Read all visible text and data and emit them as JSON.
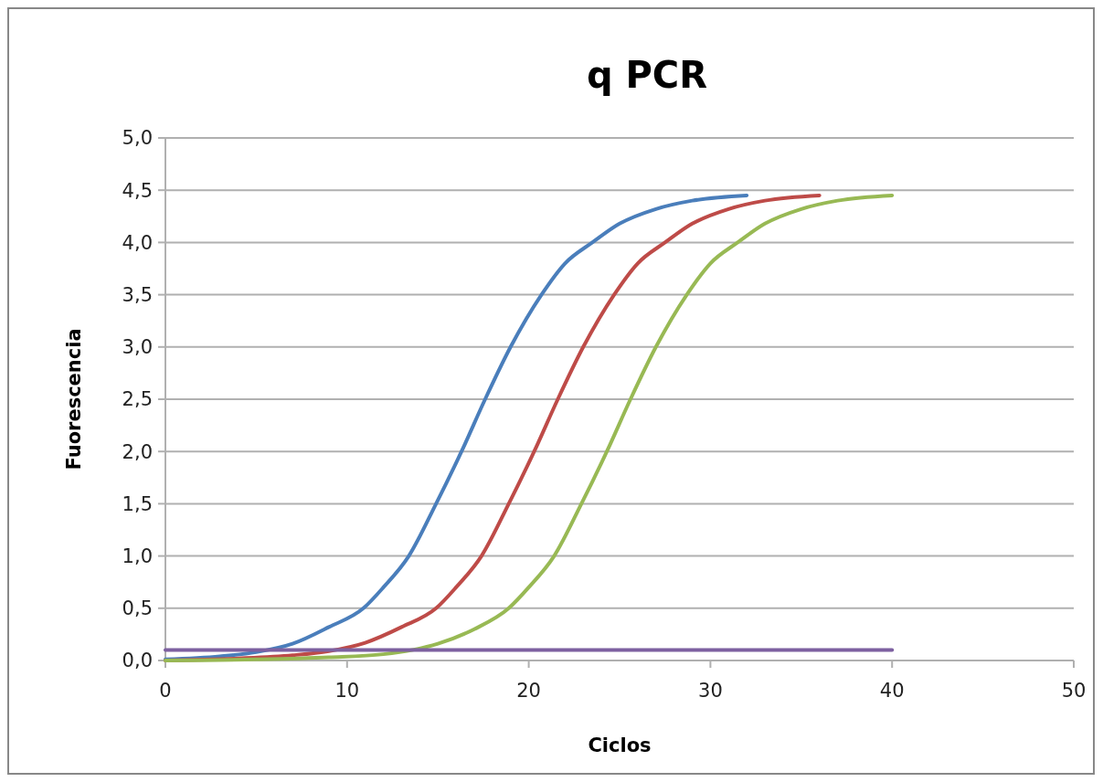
{
  "chart_data": {
    "type": "line",
    "title": "q PCR",
    "xlabel": "Ciclos",
    "ylabel": "Fuorescencia",
    "xlim": [
      0,
      50
    ],
    "xticks": [
      0,
      10,
      20,
      30,
      40,
      50
    ],
    "ylim": [
      0,
      5
    ],
    "yticks": [
      {
        "value": 0,
        "label": "0,0"
      },
      {
        "value": 0.5,
        "label": "0,5"
      },
      {
        "value": 1,
        "label": "1,0"
      },
      {
        "value": 1.5,
        "label": "1,5"
      },
      {
        "value": 2,
        "label": "2,0"
      },
      {
        "value": 2.5,
        "label": "2,5"
      },
      {
        "value": 3,
        "label": "3,0"
      },
      {
        "value": 3.5,
        "label": "3,5"
      },
      {
        "value": 4,
        "label": "4,0"
      },
      {
        "value": 4.5,
        "label": "4,5"
      },
      {
        "value": 5,
        "label": "5,0"
      }
    ],
    "grid": "y",
    "marker": "none",
    "line_style": "solid",
    "series": [
      {
        "color": "#4a7ebb",
        "x": [
          0,
          3,
          5,
          7,
          9,
          10.9,
          12,
          13.4,
          14.9,
          16.3,
          17.6,
          19,
          20.7,
          22,
          23.5,
          25,
          27,
          29,
          32
        ],
        "values": [
          0.01,
          0.04,
          0.08,
          0.16,
          0.32,
          0.5,
          0.7,
          1.0,
          1.5,
          2.0,
          2.5,
          3.0,
          3.5,
          3.8,
          4.0,
          4.18,
          4.32,
          4.4,
          4.45
        ]
      },
      {
        "color": "#be4b48",
        "x": [
          0,
          4,
          7,
          9,
          11,
          13,
          14.9,
          16,
          17.4,
          18.9,
          20.3,
          21.6,
          23,
          24.7,
          26,
          27.5,
          29,
          31,
          33,
          36
        ],
        "values": [
          0,
          0.02,
          0.05,
          0.09,
          0.17,
          0.32,
          0.5,
          0.7,
          1.0,
          1.5,
          2.0,
          2.5,
          3.0,
          3.5,
          3.8,
          4.0,
          4.18,
          4.32,
          4.4,
          4.45
        ]
      },
      {
        "color": "#98b954",
        "x": [
          0,
          5,
          9,
          12,
          15,
          17,
          18.9,
          20,
          21.4,
          22.9,
          24.3,
          25.6,
          27,
          28.7,
          30,
          31.5,
          33,
          35,
          37,
          40
        ],
        "values": [
          0,
          0.01,
          0.03,
          0.06,
          0.16,
          0.3,
          0.5,
          0.7,
          1.0,
          1.5,
          2.0,
          2.5,
          3.0,
          3.5,
          3.8,
          4.0,
          4.18,
          4.32,
          4.4,
          4.45
        ]
      },
      {
        "color": "#7d60a0",
        "x": [
          0,
          40
        ],
        "values": [
          0.1,
          0.1
        ]
      }
    ]
  }
}
